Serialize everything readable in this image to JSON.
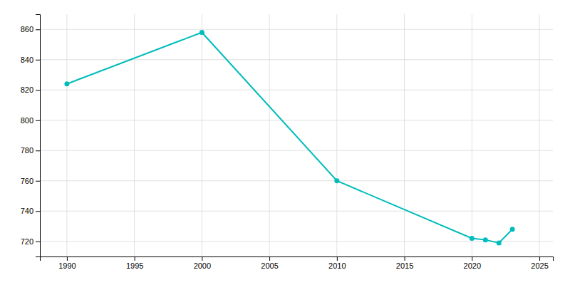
{
  "chart_data": {
    "type": "line",
    "x": [
      1990,
      2000,
      2010,
      2020,
      2021,
      2022,
      2023
    ],
    "values": [
      824,
      858,
      760,
      722,
      721,
      719,
      728
    ],
    "color": "#00BCBC",
    "marker": "circle",
    "xlim": [
      1988,
      2026
    ],
    "ylim": [
      710,
      870
    ],
    "xticks": [
      1990,
      1995,
      2000,
      2005,
      2010,
      2015,
      2020,
      2025
    ],
    "yticks": [
      720,
      740,
      760,
      780,
      800,
      820,
      840,
      860
    ],
    "grid": true
  }
}
